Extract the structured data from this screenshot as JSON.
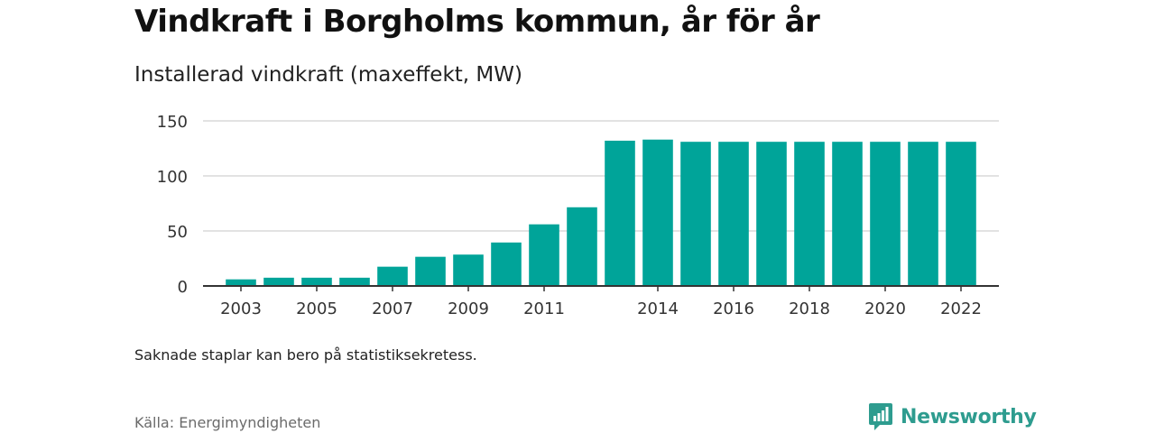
{
  "header": {
    "title": "Vindkraft i Borgholms kommun, år för år",
    "subtitle": "Installerad vindkraft (maxeffekt, MW)"
  },
  "footer": {
    "note": "Saknade staplar kan bero på statistiksekretess.",
    "source": "Källa: Energimyndigheten",
    "brand": "Newsworthy",
    "brand_icon": "newsworthy-logo-icon"
  },
  "colors": {
    "bar": "#00a499",
    "grid": "#d9d9d9",
    "axis": "#333333",
    "brand": "#2e9c8f"
  },
  "chart_data": {
    "type": "bar",
    "title": "Vindkraft i Borgholms kommun, år för år",
    "ylabel": "Installerad vindkraft (maxeffekt, MW)",
    "xlabel": "",
    "ylim": [
      0,
      150
    ],
    "yticks": [
      0,
      50,
      100,
      150
    ],
    "xlim": [
      2002,
      2023
    ],
    "xticks": [
      2003,
      2005,
      2007,
      2009,
      2011,
      2014,
      2016,
      2018,
      2020,
      2022
    ],
    "grid": true,
    "categories": [
      2003,
      2004,
      2005,
      2006,
      2007,
      2008,
      2009,
      2010,
      2011,
      2012,
      2013,
      2014,
      2015,
      2016,
      2017,
      2018,
      2019,
      2020,
      2021,
      2022
    ],
    "values": [
      6,
      7.5,
      7.5,
      7.5,
      17.5,
      26.5,
      28.5,
      39.5,
      56,
      71.5,
      132,
      133,
      131,
      131,
      131,
      131,
      131,
      131,
      131,
      131
    ]
  }
}
